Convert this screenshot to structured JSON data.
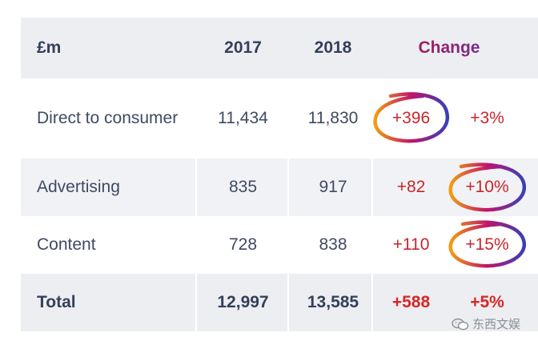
{
  "table": {
    "header": {
      "label": "£m",
      "y2017": "2017",
      "y2018": "2018",
      "change": "Change"
    },
    "rows": [
      {
        "label": "Direct to consumer",
        "y2017": "11,434",
        "y2018": "11,830",
        "abs": "+396",
        "pct": "+3%"
      },
      {
        "label": "Advertising",
        "y2017": "835",
        "y2018": "917",
        "abs": "+82",
        "pct": "+10%"
      },
      {
        "label": "Content",
        "y2017": "728",
        "y2018": "838",
        "abs": "+110",
        "pct": "+15%"
      }
    ],
    "total": {
      "label": "Total",
      "y2017": "12,997",
      "y2018": "13,585",
      "abs": "+588",
      "pct": "+5%"
    }
  },
  "watermark": {
    "text": "东西文娱",
    "icon": "wechat-icon"
  },
  "colors": {
    "change_red": "#c8262c",
    "header_bg": "#edeef2",
    "text": "#3f4a63"
  }
}
